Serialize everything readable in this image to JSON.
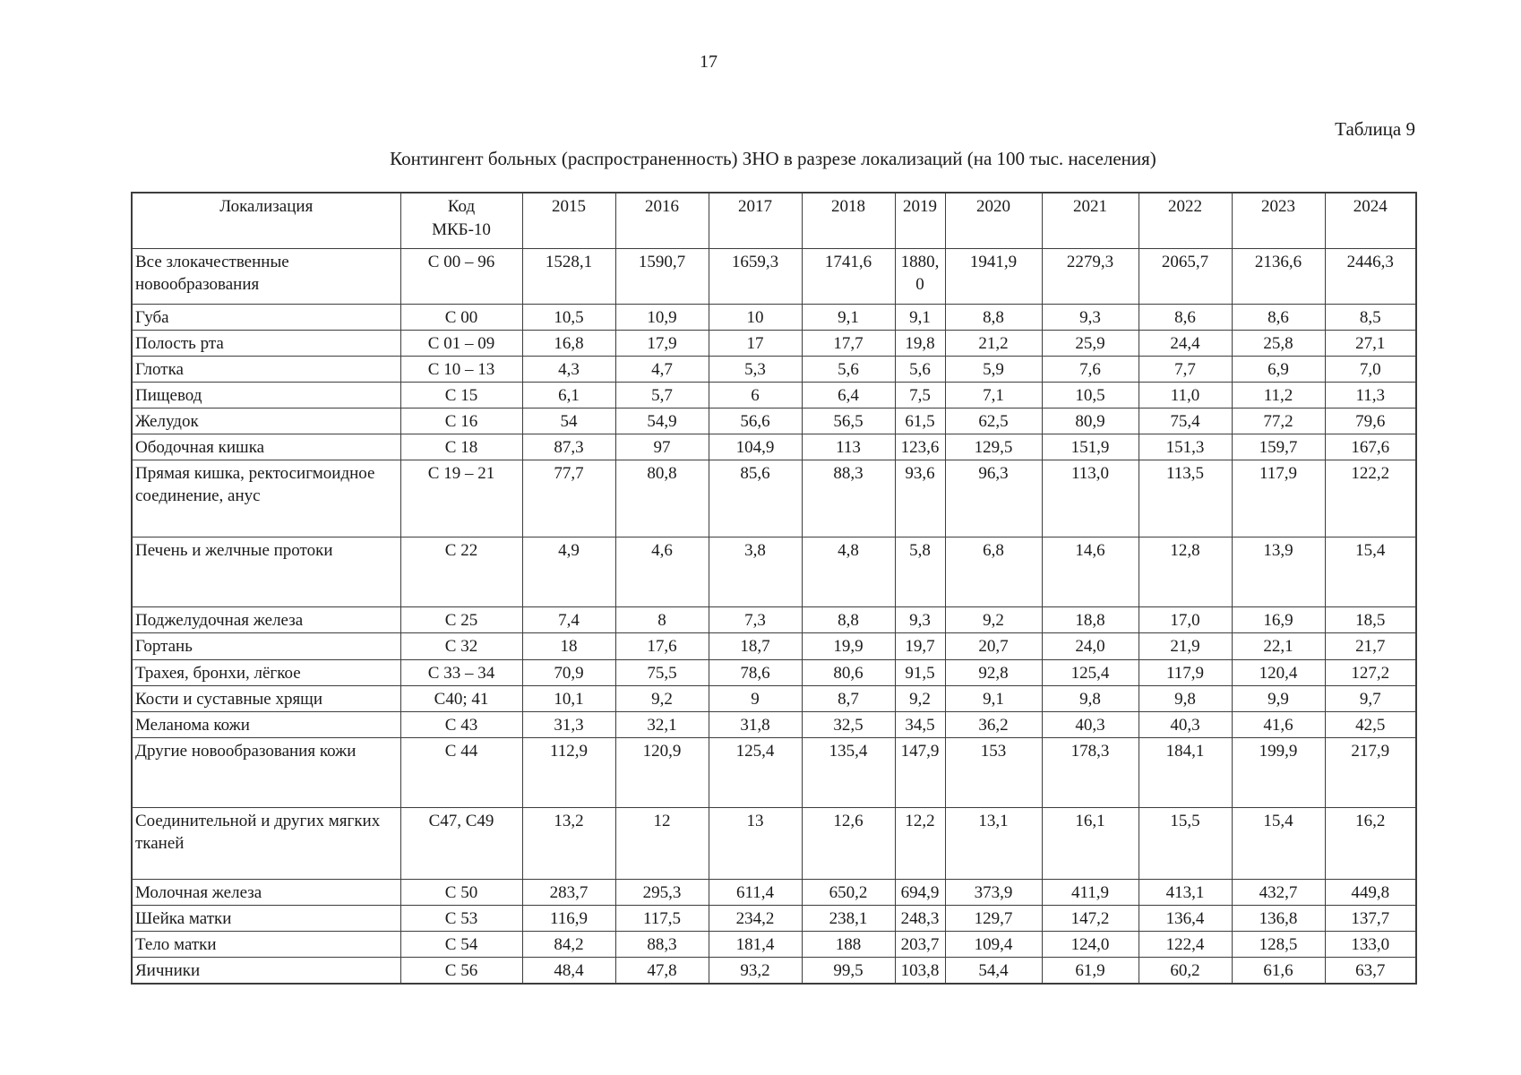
{
  "page": {
    "number": "17",
    "table_label": "Таблица 9",
    "caption": "Контингент больных (распространенность) ЗНО в разрезе локализаций (на 100 тыс. населения)"
  },
  "table": {
    "col_headers": [
      "Локализация",
      "Код МКБ-10",
      "2015",
      "2016",
      "2017",
      "2018",
      "2019",
      "2020",
      "2021",
      "2022",
      "2023",
      "2024"
    ],
    "rows": [
      {
        "loc": "Все злокачественные новообразования",
        "code": "С 00 – 96",
        "values": [
          "1528,1",
          "1590,7",
          "1659,3",
          "1741,6",
          "1880,0",
          "1941,9",
          "2279,3",
          "2065,7",
          "2136,6",
          "2446,3"
        ]
      },
      {
        "loc": "Губа",
        "code": "С 00",
        "values": [
          "10,5",
          "10,9",
          "10",
          "9,1",
          "9,1",
          "8,8",
          "9,3",
          "8,6",
          "8,6",
          "8,5"
        ]
      },
      {
        "loc": "Полость рта",
        "code": "С 01 – 09",
        "values": [
          "16,8",
          "17,9",
          "17",
          "17,7",
          "19,8",
          "21,2",
          "25,9",
          "24,4",
          "25,8",
          "27,1"
        ]
      },
      {
        "loc": "Глотка",
        "code": "С 10 – 13",
        "values": [
          "4,3",
          "4,7",
          "5,3",
          "5,6",
          "5,6",
          "5,9",
          "7,6",
          "7,7",
          "6,9",
          "7,0"
        ]
      },
      {
        "loc": "Пищевод",
        "code": "С 15",
        "values": [
          "6,1",
          "5,7",
          "6",
          "6,4",
          "7,5",
          "7,1",
          "10,5",
          "11,0",
          "11,2",
          "11,3"
        ]
      },
      {
        "loc": "Желудок",
        "code": "С 16",
        "values": [
          "54",
          "54,9",
          "56,6",
          "56,5",
          "61,5",
          "62,5",
          "80,9",
          "75,4",
          "77,2",
          "79,6"
        ]
      },
      {
        "loc": "Ободочная кишка",
        "code": "С 18",
        "values": [
          "87,3",
          "97",
          "104,9",
          "113",
          "123,6",
          "129,5",
          "151,9",
          "151,3",
          "159,7",
          "167,6"
        ]
      },
      {
        "loc": "Прямая кишка, ректосигмоидное соединение, анус",
        "code": "С 19 – 21",
        "values": [
          "77,7",
          "80,8",
          "85,6",
          "88,3",
          "93,6",
          "96,3",
          "113,0",
          "113,5",
          "117,9",
          "122,2"
        ]
      },
      {
        "loc": "Печень и желчные протоки",
        "code": "С 22",
        "values": [
          "4,9",
          "4,6",
          "3,8",
          "4,8",
          "5,8",
          "6,8",
          "14,6",
          "12,8",
          "13,9",
          "15,4"
        ]
      },
      {
        "loc": "Поджелудочная железа",
        "code": "С 25",
        "values": [
          "7,4",
          "8",
          "7,3",
          "8,8",
          "9,3",
          "9,2",
          "18,8",
          "17,0",
          "16,9",
          "18,5"
        ]
      },
      {
        "loc": "Гортань",
        "code": "С 32",
        "values": [
          "18",
          "17,6",
          "18,7",
          "19,9",
          "19,7",
          "20,7",
          "24,0",
          "21,9",
          "22,1",
          "21,7"
        ]
      },
      {
        "loc": "Трахея, бронхи, лёгкое",
        "code": "С 33 – 34",
        "values": [
          "70,9",
          "75,5",
          "78,6",
          "80,6",
          "91,5",
          "92,8",
          "125,4",
          "117,9",
          "120,4",
          "127,2"
        ]
      },
      {
        "loc": "Кости и суставные хрящи",
        "code": "С40; 41",
        "values": [
          "10,1",
          "9,2",
          "9",
          "8,7",
          "9,2",
          "9,1",
          "9,8",
          "9,8",
          "9,9",
          "9,7"
        ]
      },
      {
        "loc": "Меланома кожи",
        "code": "С 43",
        "values": [
          "31,3",
          "32,1",
          "31,8",
          "32,5",
          "34,5",
          "36,2",
          "40,3",
          "40,3",
          "41,6",
          "42,5"
        ]
      },
      {
        "loc": "Другие новообразования кожи",
        "code": "С 44",
        "values": [
          "112,9",
          "120,9",
          "125,4",
          "135,4",
          "147,9",
          "153",
          "178,3",
          "184,1",
          "199,9",
          "217,9"
        ]
      },
      {
        "loc": "Соединительной и других мягких тканей",
        "code": "С47, С49",
        "values": [
          "13,2",
          "12",
          "13",
          "12,6",
          "12,2",
          "13,1",
          "16,1",
          "15,5",
          "15,4",
          "16,2"
        ]
      },
      {
        "loc": "Молочная железа",
        "code": "С 50",
        "values": [
          "283,7",
          "295,3",
          "611,4",
          "650,2",
          "694,9",
          "373,9",
          "411,9",
          "413,1",
          "432,7",
          "449,8"
        ]
      },
      {
        "loc": "Шейка матки",
        "code": "С 53",
        "values": [
          "116,9",
          "117,5",
          "234,2",
          "238,1",
          "248,3",
          "129,7",
          "147,2",
          "136,4",
          "136,8",
          "137,7"
        ]
      },
      {
        "loc": "Тело матки",
        "code": "С 54",
        "values": [
          "84,2",
          "88,3",
          "181,4",
          "188",
          "203,7",
          "109,4",
          "124,0",
          "122,4",
          "128,5",
          "133,0"
        ]
      },
      {
        "loc": "Яичники",
        "code": "С 56",
        "values": [
          "48,4",
          "47,8",
          "93,2",
          "99,5",
          "103,8",
          "54,4",
          "61,9",
          "60,2",
          "61,6",
          "63,7"
        ]
      }
    ]
  }
}
